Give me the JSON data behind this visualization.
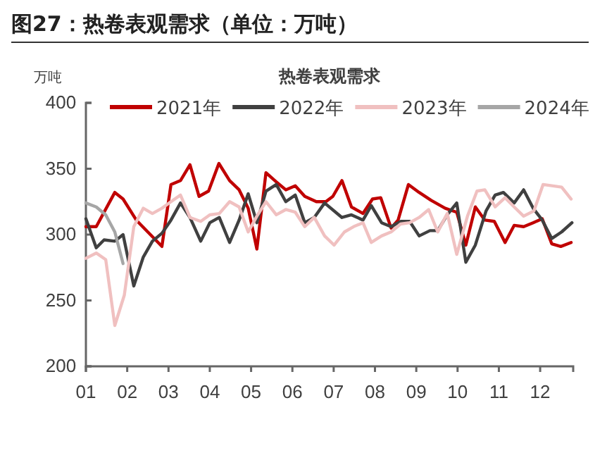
{
  "chart_data": {
    "type": "line",
    "title": "图27：热卷表观需求（单位：万吨）",
    "subtitle": "热卷表观需求",
    "ylabel": "万吨",
    "xlim": [
      1,
      12.8
    ],
    "xticks": [
      {
        "value": 1,
        "label": "01"
      },
      {
        "value": 2,
        "label": "02"
      },
      {
        "value": 3,
        "label": "03"
      },
      {
        "value": 4,
        "label": "04"
      },
      {
        "value": 5,
        "label": "05"
      },
      {
        "value": 6,
        "label": "06"
      },
      {
        "value": 7,
        "label": "07"
      },
      {
        "value": 8,
        "label": "08"
      },
      {
        "value": 9,
        "label": "09"
      },
      {
        "value": 10,
        "label": "10"
      },
      {
        "value": 11,
        "label": "11"
      },
      {
        "value": 12,
        "label": "12"
      }
    ],
    "ylim": [
      200,
      400
    ],
    "yticks": [
      200,
      250,
      300,
      350,
      400
    ],
    "grid": false,
    "legend": "top",
    "line_style": "solid",
    "marker": "none",
    "series": [
      {
        "name": "2021年",
        "color": "#c00000",
        "x": [
          1.0,
          1.25,
          1.7,
          1.9,
          2.22,
          2.84,
          3.06,
          3.29,
          3.52,
          3.74,
          3.97,
          4.22,
          4.48,
          4.71,
          4.93,
          5.14,
          5.36,
          5.61,
          5.84,
          6.07,
          6.3,
          6.58,
          6.81,
          6.98,
          7.2,
          7.43,
          7.71,
          7.94,
          8.14,
          8.39,
          8.56,
          8.81,
          9.07,
          9.36,
          9.7,
          9.98,
          10.2,
          10.43,
          10.66,
          10.89,
          11.15,
          11.37,
          11.6,
          11.83,
          12.05,
          12.28,
          12.5,
          12.75
        ],
        "values": [
          306,
          306,
          332,
          327,
          311,
          291,
          338,
          341,
          353,
          329,
          333,
          354,
          341,
          334,
          320,
          289,
          347,
          340,
          334,
          337,
          329,
          325,
          325,
          329,
          341,
          321,
          316,
          327,
          328,
          305,
          311,
          338,
          332,
          326,
          320,
          317,
          292,
          321,
          311,
          310,
          294,
          307,
          306,
          309,
          312,
          293,
          291,
          294
        ]
      },
      {
        "name": "2022年",
        "color": "#404040",
        "x": [
          1.0,
          1.25,
          1.44,
          1.7,
          1.9,
          2.16,
          2.39,
          2.61,
          2.84,
          3.06,
          3.29,
          3.52,
          3.78,
          4.0,
          4.23,
          4.48,
          4.71,
          4.93,
          5.14,
          5.36,
          5.61,
          5.84,
          6.07,
          6.3,
          6.53,
          6.78,
          7.2,
          7.43,
          7.71,
          7.91,
          8.16,
          8.39,
          8.62,
          8.84,
          9.07,
          9.33,
          9.52,
          9.75,
          9.98,
          10.2,
          10.43,
          10.69,
          10.91,
          11.11,
          11.37,
          11.6,
          11.83,
          12.05,
          12.28,
          12.52,
          12.77
        ],
        "values": [
          312,
          290,
          296,
          295,
          300,
          261,
          283,
          295,
          301,
          311,
          324,
          313,
          295,
          309,
          313,
          294,
          311,
          331,
          309,
          333,
          338,
          325,
          330,
          309,
          313,
          324,
          313,
          315,
          311,
          322,
          309,
          306,
          310,
          310,
          299,
          303,
          303,
          315,
          324,
          279,
          292,
          318,
          330,
          332,
          324,
          334,
          320,
          311,
          297,
          302,
          309
        ]
      },
      {
        "name": "2023年",
        "color": "#f0c0c0",
        "x": [
          1.0,
          1.25,
          1.48,
          1.7,
          1.93,
          2.16,
          2.39,
          2.61,
          2.84,
          3.06,
          3.29,
          3.52,
          3.78,
          4.0,
          4.23,
          4.48,
          4.71,
          4.93,
          5.14,
          5.36,
          5.61,
          5.84,
          6.07,
          6.3,
          6.53,
          6.78,
          7.01,
          7.26,
          7.48,
          7.71,
          7.91,
          8.16,
          8.39,
          8.62,
          8.84,
          9.07,
          9.3,
          9.52,
          9.75,
          9.98,
          10.24,
          10.47,
          10.66,
          10.91,
          11.15,
          11.37,
          11.6,
          11.85,
          12.07,
          12.52,
          12.75
        ],
        "values": [
          282,
          286,
          281,
          231,
          254,
          306,
          320,
          316,
          320,
          325,
          330,
          313,
          310,
          315,
          316,
          325,
          321,
          302,
          314,
          325,
          315,
          319,
          317,
          306,
          313,
          299,
          292,
          302,
          306,
          309,
          294,
          299,
          302,
          308,
          309,
          313,
          319,
          302,
          316,
          285,
          314,
          333,
          334,
          321,
          328,
          321,
          314,
          318,
          338,
          336,
          327
        ]
      },
      {
        "name": "2024年",
        "color": "#a6a6a6",
        "x": [
          1.0,
          1.25,
          1.48,
          1.7,
          1.9
        ],
        "values": [
          324,
          321,
          315,
          302,
          278
        ]
      }
    ]
  }
}
